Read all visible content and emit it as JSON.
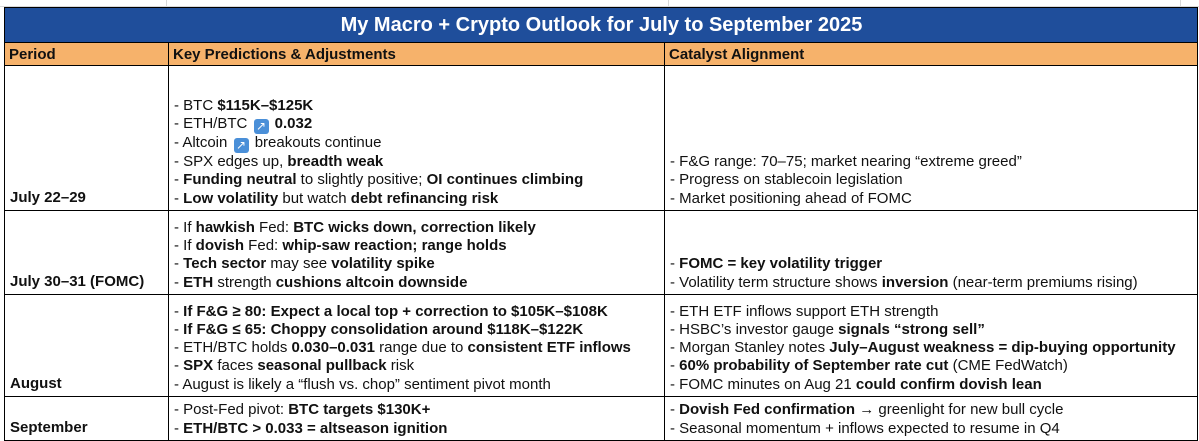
{
  "title": "My Macro + Crypto Outlook for July to September 2025",
  "headers": {
    "period": "Period",
    "predictions": "Key Predictions & Adjustments",
    "catalysts": "Catalyst Alignment"
  },
  "rows": [
    {
      "period": "July 22–29",
      "predictions": [
        [
          {
            "t": "- BTC "
          },
          {
            "t": "$115K–$125K",
            "b": true
          }
        ],
        [
          {
            "t": "- ETH/BTC "
          },
          {
            "icon": "up-right-arrow-icon",
            "t": "↗"
          },
          {
            "t": " "
          },
          {
            "t": "0.032",
            "b": true
          }
        ],
        [
          {
            "t": "- Altcoin "
          },
          {
            "icon": "up-right-arrow-icon",
            "t": "↗"
          },
          {
            "t": " breakouts continue"
          }
        ],
        [
          {
            "t": "- SPX edges up, "
          },
          {
            "t": "breadth weak",
            "b": true
          }
        ],
        [
          {
            "t": "- "
          },
          {
            "t": "Funding neutral",
            "b": true
          },
          {
            "t": " to slightly positive; "
          },
          {
            "t": "OI continues climbing",
            "b": true
          }
        ],
        [
          {
            "t": "- "
          },
          {
            "t": "Low volatility",
            "b": true
          },
          {
            "t": " but watch "
          },
          {
            "t": "debt refinancing risk",
            "b": true
          }
        ]
      ],
      "catalysts": [
        [
          {
            "t": "- F&G range: 70–75; market nearing “extreme greed”"
          }
        ],
        [
          {
            "t": "- Progress on stablecoin legislation"
          }
        ],
        [
          {
            "t": "- Market positioning ahead of FOMC"
          }
        ]
      ]
    },
    {
      "period": "July 30–31 (FOMC)",
      "predictions": [
        [
          {
            "t": "- If "
          },
          {
            "t": "hawkish",
            "b": true
          },
          {
            "t": " Fed: "
          },
          {
            "t": "BTC wicks down, correction likely",
            "b": true
          }
        ],
        [
          {
            "t": "- If "
          },
          {
            "t": "dovish",
            "b": true
          },
          {
            "t": " Fed: "
          },
          {
            "t": "whip-saw reaction; range holds",
            "b": true
          }
        ],
        [
          {
            "t": "- "
          },
          {
            "t": "Tech sector",
            "b": true
          },
          {
            "t": " may see "
          },
          {
            "t": "volatility spike",
            "b": true
          }
        ],
        [
          {
            "t": "- "
          },
          {
            "t": "ETH",
            "b": true
          },
          {
            "t": " strength "
          },
          {
            "t": "cushions altcoin downside",
            "b": true
          }
        ]
      ],
      "catalysts": [
        [
          {
            "t": "- "
          },
          {
            "t": "FOMC = key volatility trigger",
            "b": true
          }
        ],
        [
          {
            "t": "- Volatility term structure shows "
          },
          {
            "t": "inversion",
            "b": true
          },
          {
            "t": " (near-term premiums rising)"
          }
        ]
      ]
    },
    {
      "period": "August",
      "predictions": [
        [
          {
            "t": "- "
          },
          {
            "t": "If F&G ≥ 80: Expect a local top + correction to $105K–$108K",
            "b": true
          }
        ],
        [
          {
            "t": "- "
          },
          {
            "t": "If F&G ≤ 65: Choppy consolidation around $118K–$122K",
            "b": true
          }
        ],
        [
          {
            "t": "- ETH/BTC holds "
          },
          {
            "t": "0.030–0.031",
            "b": true
          },
          {
            "t": " range due to "
          },
          {
            "t": "consistent ETF inflows",
            "b": true
          }
        ],
        [
          {
            "t": "- "
          },
          {
            "t": "SPX",
            "b": true
          },
          {
            "t": " faces "
          },
          {
            "t": "seasonal pullback",
            "b": true
          },
          {
            "t": " risk"
          }
        ],
        [
          {
            "t": "- August is likely a “flush vs. chop” sentiment pivot month"
          }
        ]
      ],
      "catalysts": [
        [
          {
            "t": "- ETH ETF inflows support ETH strength"
          }
        ],
        [
          {
            "t": "- HSBC’s investor gauge "
          },
          {
            "t": "signals “strong sell”",
            "b": true
          }
        ],
        [
          {
            "t": "- Morgan Stanley notes "
          },
          {
            "t": "July–August weakness = dip-buying opportunity",
            "b": true
          }
        ],
        [
          {
            "t": "- "
          },
          {
            "t": "60% probability of September rate cut",
            "b": true
          },
          {
            "t": " (CME FedWatch)"
          }
        ],
        [
          {
            "t": "- FOMC minutes on Aug 21 "
          },
          {
            "t": "could confirm dovish lean",
            "b": true
          }
        ]
      ]
    },
    {
      "period": "September",
      "predictions": [
        [
          {
            "t": "- Post-Fed pivot: "
          },
          {
            "t": "BTC targets $130K+",
            "b": true
          }
        ],
        [
          {
            "t": "- "
          },
          {
            "t": "ETH/BTC > 0.033 = altseason ignition",
            "b": true
          }
        ]
      ],
      "catalysts": [
        [
          {
            "t": "- "
          },
          {
            "t": "Dovish Fed confirmation",
            "b": true
          },
          {
            "t": " → greenlight for new bull cycle"
          }
        ],
        [
          {
            "t": "- Seasonal momentum + inflows expected to resume in Q4"
          }
        ]
      ]
    }
  ]
}
